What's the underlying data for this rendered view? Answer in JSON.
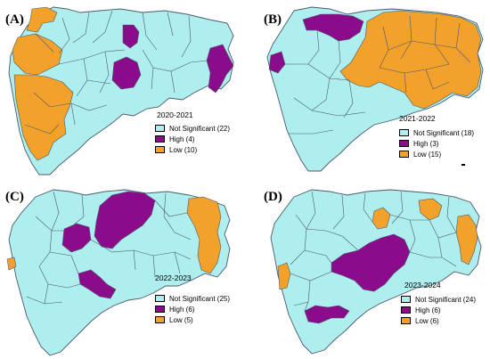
{
  "colors": {
    "not_significant": "#aeeeee",
    "high": "#8b0c8b",
    "low": "#f2a12b",
    "border": "#4a5a6a"
  },
  "legend_labels": {
    "not_significant": "Not Significant",
    "high": "High",
    "low": "Low"
  },
  "panels": [
    {
      "label": "(A)",
      "year": "2020-2021",
      "legend": {
        "not_significant": "Not Significant (22)",
        "high": "High (4)",
        "low": "Low (10)"
      }
    },
    {
      "label": "(B)",
      "year": "2021-2022",
      "legend": {
        "not_significant": "Not Significant (18)",
        "high": "High (3)",
        "low": "Low (15)"
      }
    },
    {
      "label": "(C)",
      "year": "2022-2023",
      "legend": {
        "not_significant": "Not Significant (25)",
        "high": "High (6)",
        "low": "Low (5)"
      }
    },
    {
      "label": "(D)",
      "year": "2023-2024",
      "legend": {
        "not_significant": "Not Significant (24)",
        "high": "High (6)",
        "low": "Low (6)"
      }
    }
  ]
}
